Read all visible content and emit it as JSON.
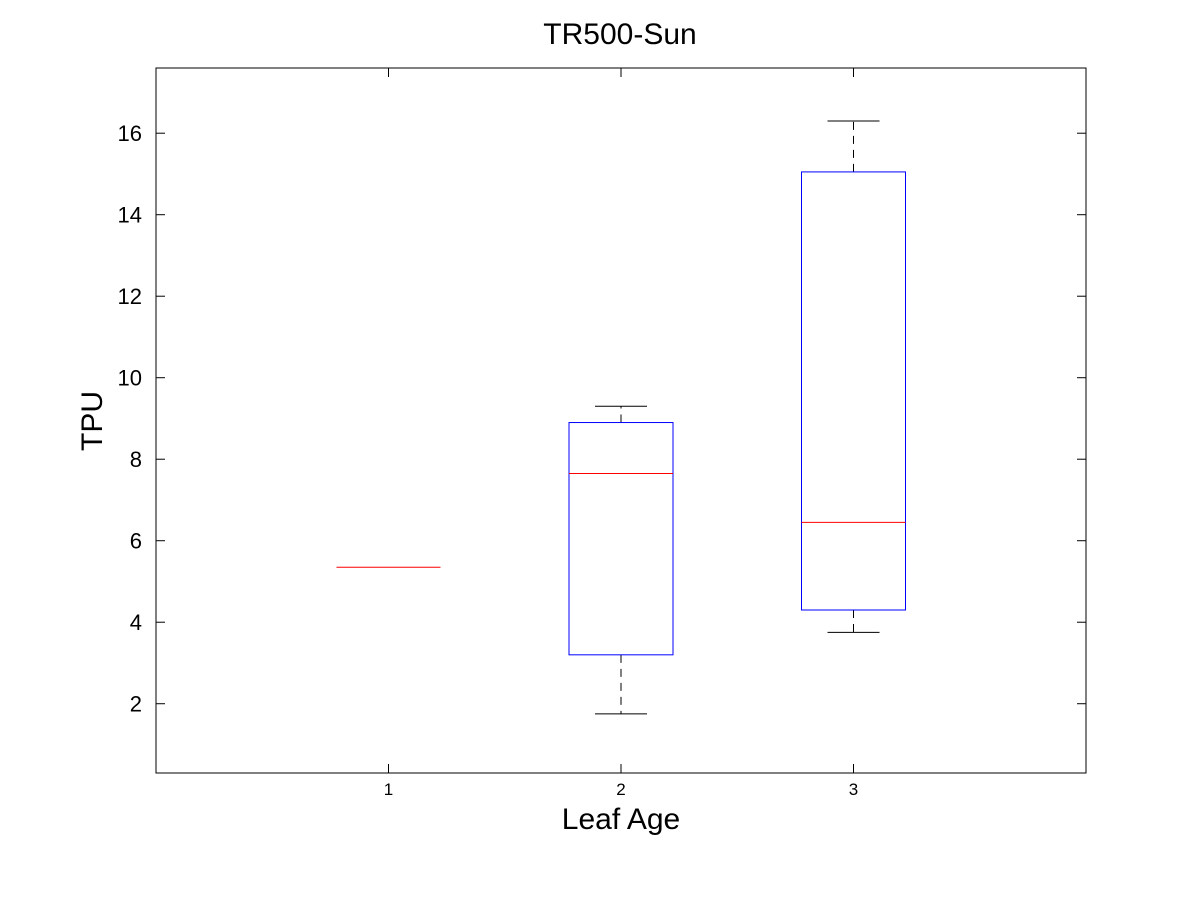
{
  "chart_data": {
    "type": "boxplot",
    "title": "TR500-Sun",
    "xlabel": "Leaf Age",
    "ylabel": "TPU",
    "categories": [
      "1",
      "2",
      "3"
    ],
    "ylim": [
      0.3,
      17.6
    ],
    "yticks": [
      "2",
      "4",
      "6",
      "8",
      "10",
      "12",
      "14",
      "16"
    ],
    "grid": false,
    "boxes": [
      {
        "category": "1",
        "whisker_low": 5.35,
        "q1": 5.35,
        "median": 5.35,
        "q3": 5.35,
        "whisker_high": 5.35
      },
      {
        "category": "2",
        "whisker_low": 1.75,
        "q1": 3.2,
        "median": 7.65,
        "q3": 8.9,
        "whisker_high": 9.3
      },
      {
        "category": "3",
        "whisker_low": 3.75,
        "q1": 4.3,
        "median": 6.45,
        "q3": 15.05,
        "whisker_high": 16.3
      }
    ],
    "colors": {
      "box": "#0000ff",
      "median": "#ff0000",
      "whisker": "#000000",
      "axes": "#000000"
    }
  }
}
